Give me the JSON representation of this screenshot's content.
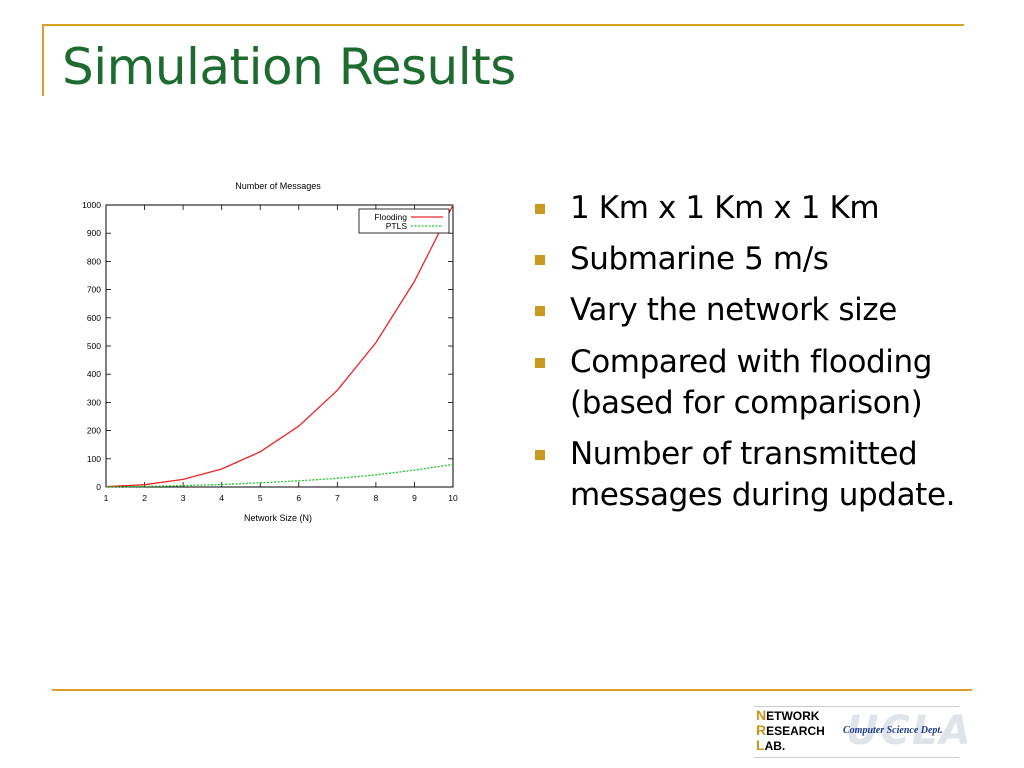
{
  "slide": {
    "title": "Simulation Results",
    "colors": {
      "title": "#1d6b2f",
      "accent_rule": "#d9a02a",
      "bullet": "#c89b1e"
    }
  },
  "bullets": [
    {
      "text": "1 Km x 1 Km x 1 Km"
    },
    {
      "text": "Submarine 5 m/s"
    },
    {
      "text": "Vary the network size"
    },
    {
      "text": "Compared with flooding (based for comparison)"
    },
    {
      "text": "Number of transmitted messages during update."
    }
  ],
  "footer": {
    "logo_line1": "ETWORK",
    "logo_line1_cap": "N",
    "logo_line2": "ESEARCH",
    "logo_line2_cap": "R",
    "logo_line3": "AB.",
    "logo_line3_cap": "L",
    "dept": "Computer Science Dept.",
    "watermark": "UCLA"
  },
  "chart_data": {
    "type": "line",
    "title": "Number of Messages",
    "xlabel": "Network Size (N)",
    "ylabel": "",
    "xlim": [
      1,
      10
    ],
    "ylim": [
      0,
      1000
    ],
    "x_ticks": [
      1,
      2,
      3,
      4,
      5,
      6,
      7,
      8,
      9,
      10
    ],
    "y_ticks": [
      0,
      100,
      200,
      300,
      400,
      500,
      600,
      700,
      800,
      900,
      1000
    ],
    "x": [
      1,
      2,
      3,
      4,
      5,
      6,
      7,
      8,
      9,
      10
    ],
    "series": [
      {
        "name": "Flooding",
        "color": "#e8262a",
        "dash": false,
        "values": [
          1,
          8,
          27,
          64,
          125,
          216,
          343,
          512,
          729,
          1000
        ]
      },
      {
        "name": "PTLS",
        "color": "#22c22a",
        "dash": true,
        "values": [
          0,
          2,
          5,
          9,
          15,
          22,
          31,
          43,
          60,
          80
        ]
      }
    ],
    "legend": "top-right",
    "grid": false
  }
}
